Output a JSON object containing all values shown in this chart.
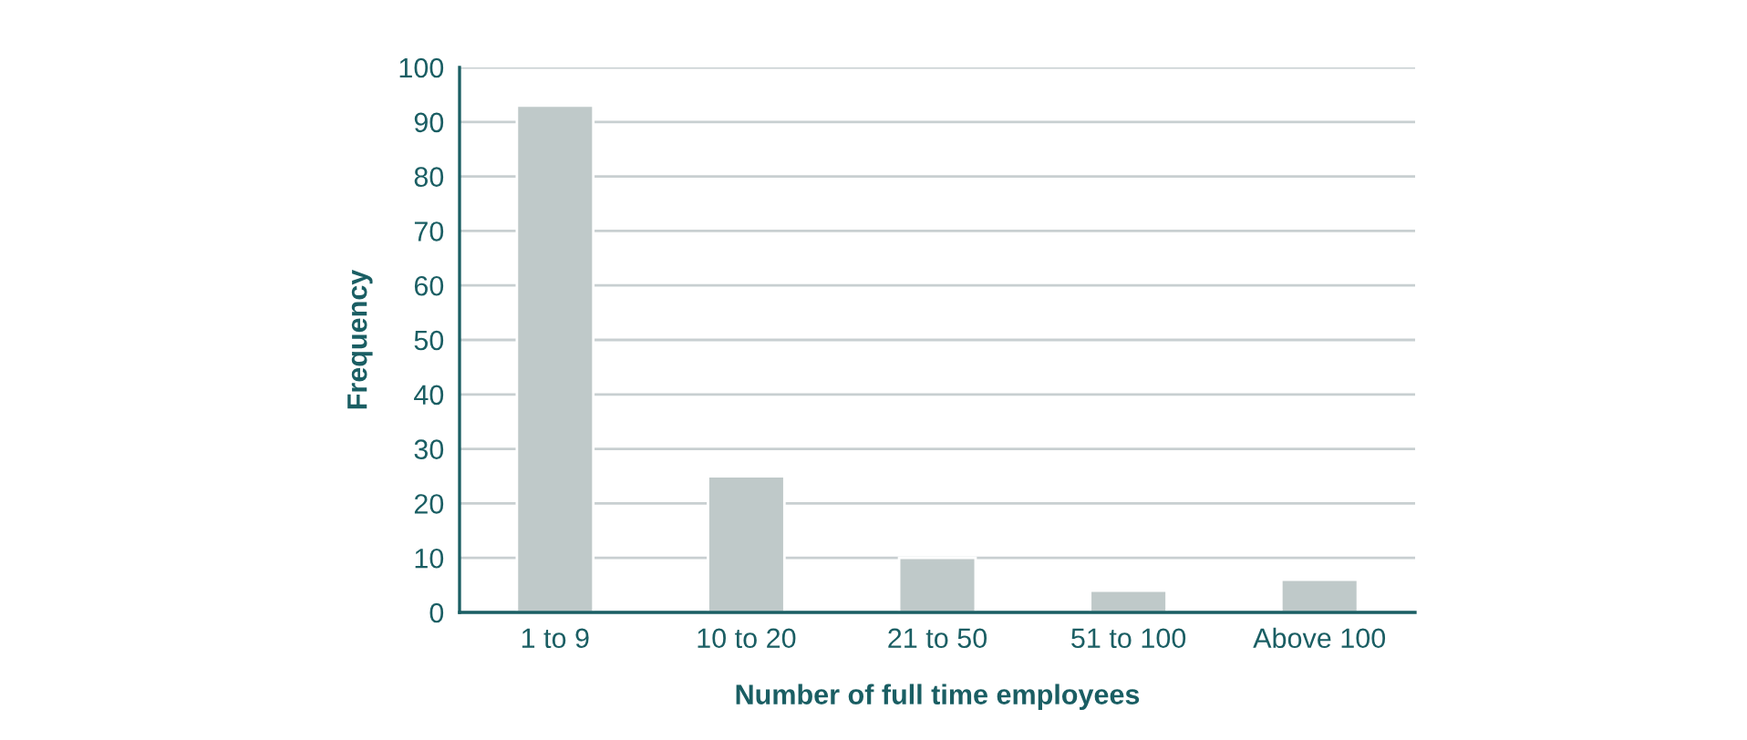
{
  "chart_data": {
    "type": "bar",
    "xlabel": "Number of full time employees",
    "ylabel": "Frequency",
    "categories": [
      "1 to 9",
      "10 to 20",
      "21 to 50",
      "51 to 100",
      "Above 100"
    ],
    "values": [
      93,
      25,
      10,
      4,
      6
    ],
    "color": "#bfc9c9",
    "ylim": [
      0,
      100
    ],
    "yticks": [
      0,
      10,
      20,
      30,
      40,
      50,
      60,
      70,
      80,
      90,
      100
    ],
    "grid": "y",
    "legend": false
  }
}
